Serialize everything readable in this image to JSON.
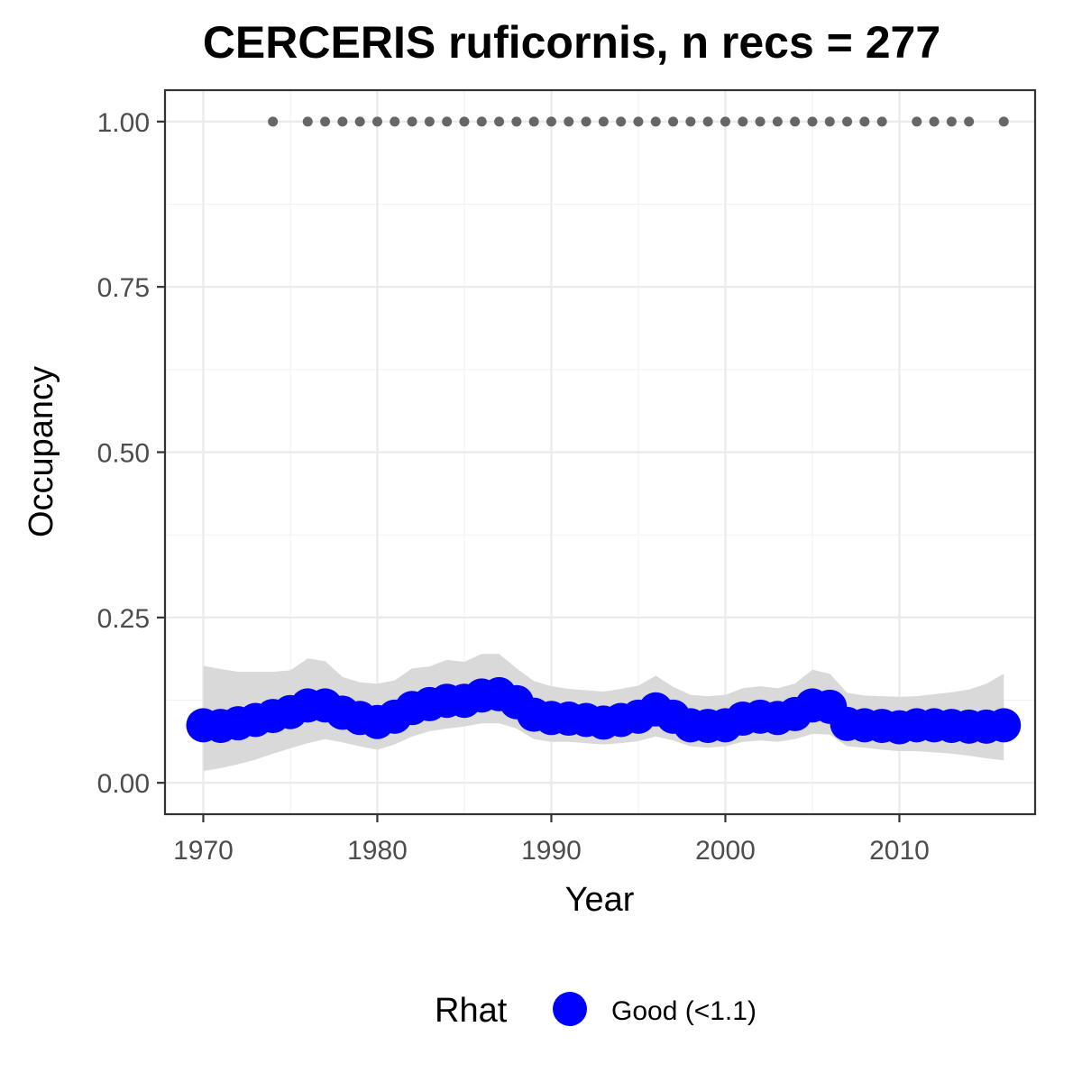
{
  "chart_data": {
    "type": "line",
    "title": "CERCERIS ruficornis, n recs = 277",
    "xlabel": "Year",
    "ylabel": "Occupancy",
    "xlim": [
      1967.8,
      2017.8
    ],
    "ylim": [
      -0.0475,
      1.0475
    ],
    "x_ticks": [
      1970,
      1980,
      1990,
      2000,
      2010
    ],
    "x_tick_labels": [
      "1970",
      "1980",
      "1990",
      "2000",
      "2010"
    ],
    "y_ticks": [
      0,
      0.25,
      0.5,
      0.75,
      1.0
    ],
    "y_tick_labels": [
      "0.00",
      "0.25",
      "0.50",
      "0.75",
      "1.00"
    ],
    "grid": true,
    "legend_position": "bottom",
    "legend": {
      "title": "Rhat",
      "entries": [
        {
          "label": "Good (<1.1)",
          "color": "#0000ff"
        }
      ]
    },
    "series": [
      {
        "name": "Good (<1.1)",
        "color": "#0000ff",
        "x": [
          1970,
          1971,
          1972,
          1973,
          1974,
          1975,
          1976,
          1977,
          1978,
          1979,
          1980,
          1981,
          1982,
          1983,
          1984,
          1985,
          1986,
          1987,
          1988,
          1989,
          1990,
          1991,
          1992,
          1993,
          1994,
          1995,
          1996,
          1997,
          1998,
          1999,
          2000,
          2001,
          2002,
          2003,
          2004,
          2005,
          2006,
          2007,
          2008,
          2009,
          2010,
          2011,
          2012,
          2013,
          2014,
          2015,
          2016
        ],
        "y": [
          0.087,
          0.086,
          0.09,
          0.095,
          0.101,
          0.107,
          0.117,
          0.117,
          0.106,
          0.098,
          0.092,
          0.1,
          0.113,
          0.119,
          0.124,
          0.124,
          0.132,
          0.134,
          0.122,
          0.103,
          0.098,
          0.097,
          0.095,
          0.091,
          0.095,
          0.1,
          0.111,
          0.1,
          0.087,
          0.086,
          0.087,
          0.097,
          0.1,
          0.098,
          0.104,
          0.117,
          0.115,
          0.089,
          0.087,
          0.086,
          0.084,
          0.087,
          0.087,
          0.086,
          0.085,
          0.085,
          0.087
        ],
        "lower": [
          0.018,
          0.022,
          0.028,
          0.035,
          0.044,
          0.052,
          0.06,
          0.066,
          0.061,
          0.055,
          0.05,
          0.058,
          0.07,
          0.078,
          0.082,
          0.085,
          0.09,
          0.09,
          0.082,
          0.066,
          0.062,
          0.062,
          0.06,
          0.058,
          0.06,
          0.063,
          0.07,
          0.064,
          0.055,
          0.053,
          0.055,
          0.062,
          0.064,
          0.062,
          0.066,
          0.074,
          0.073,
          0.055,
          0.053,
          0.05,
          0.048,
          0.048,
          0.046,
          0.044,
          0.041,
          0.037,
          0.034
        ],
        "upper": [
          0.177,
          0.172,
          0.168,
          0.168,
          0.168,
          0.17,
          0.188,
          0.184,
          0.16,
          0.152,
          0.15,
          0.155,
          0.173,
          0.176,
          0.186,
          0.183,
          0.195,
          0.195,
          0.173,
          0.154,
          0.146,
          0.142,
          0.14,
          0.138,
          0.142,
          0.147,
          0.162,
          0.145,
          0.133,
          0.131,
          0.133,
          0.143,
          0.146,
          0.143,
          0.15,
          0.171,
          0.165,
          0.136,
          0.132,
          0.131,
          0.13,
          0.131,
          0.134,
          0.137,
          0.141,
          0.15,
          0.165
        ]
      }
    ],
    "records": {
      "name": "Records",
      "color": "#666666",
      "y": 1.0,
      "x": [
        1974,
        1976,
        1977,
        1978,
        1979,
        1980,
        1981,
        1982,
        1983,
        1984,
        1985,
        1986,
        1987,
        1988,
        1989,
        1990,
        1991,
        1992,
        1993,
        1994,
        1995,
        1996,
        1997,
        1998,
        1999,
        2000,
        2001,
        2002,
        2003,
        2004,
        2005,
        2006,
        2007,
        2008,
        2009,
        2011,
        2012,
        2013,
        2014,
        2016
      ]
    }
  }
}
